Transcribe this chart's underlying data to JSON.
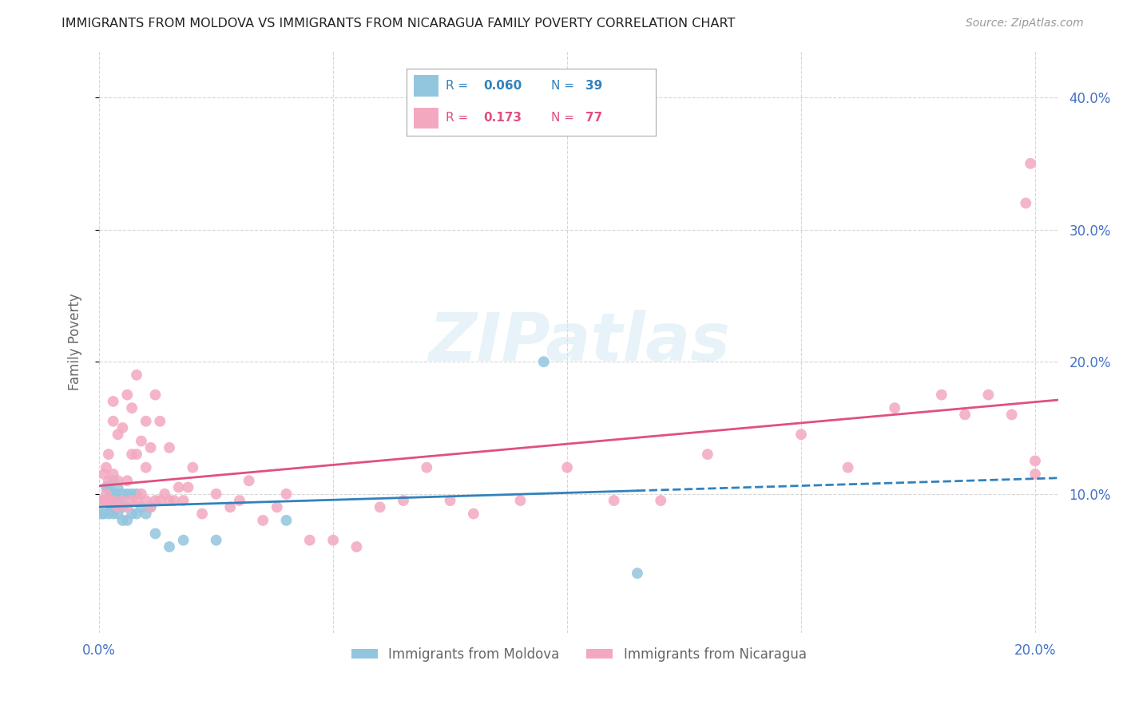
{
  "title": "IMMIGRANTS FROM MOLDOVA VS IMMIGRANTS FROM NICARAGUA FAMILY POVERTY CORRELATION CHART",
  "source": "Source: ZipAtlas.com",
  "ylabel": "Family Poverty",
  "xlim": [
    0.0,
    0.205
  ],
  "ylim": [
    -0.005,
    0.435
  ],
  "right_yticks": [
    0.1,
    0.2,
    0.3,
    0.4
  ],
  "right_ytick_labels": [
    "10.0%",
    "20.0%",
    "30.0%",
    "40.0%"
  ],
  "xtick_positions": [
    0.0,
    0.05,
    0.1,
    0.15,
    0.2
  ],
  "xtick_labels": [
    "0.0%",
    "",
    "",
    "",
    "20.0%"
  ],
  "moldova_color": "#92c5de",
  "nicaragua_color": "#f4a8c0",
  "moldova_R": 0.06,
  "moldova_N": 39,
  "nicaragua_R": 0.173,
  "nicaragua_N": 77,
  "moldova_line_color": "#3182bd",
  "nicaragua_line_color": "#e05080",
  "background_color": "#ffffff",
  "grid_color": "#cccccc",
  "axis_label_color": "#666666",
  "tick_color": "#4472C4",
  "watermark_text": "ZIPatlas",
  "watermark_color": "#d0e8f5",
  "moldova_x": [
    0.0005,
    0.001,
    0.001,
    0.0015,
    0.0015,
    0.002,
    0.002,
    0.002,
    0.0025,
    0.0025,
    0.003,
    0.003,
    0.003,
    0.003,
    0.0035,
    0.0035,
    0.004,
    0.004,
    0.004,
    0.0045,
    0.005,
    0.005,
    0.005,
    0.006,
    0.006,
    0.007,
    0.007,
    0.008,
    0.008,
    0.009,
    0.01,
    0.011,
    0.012,
    0.015,
    0.018,
    0.025,
    0.04,
    0.095,
    0.115
  ],
  "moldova_y": [
    0.085,
    0.085,
    0.095,
    0.095,
    0.105,
    0.085,
    0.095,
    0.105,
    0.09,
    0.1,
    0.085,
    0.095,
    0.1,
    0.11,
    0.09,
    0.1,
    0.085,
    0.095,
    0.105,
    0.095,
    0.08,
    0.09,
    0.1,
    0.08,
    0.1,
    0.085,
    0.1,
    0.085,
    0.1,
    0.09,
    0.085,
    0.09,
    0.07,
    0.06,
    0.065,
    0.065,
    0.08,
    0.2,
    0.04
  ],
  "nicaragua_x": [
    0.0005,
    0.001,
    0.001,
    0.0015,
    0.0015,
    0.002,
    0.002,
    0.002,
    0.003,
    0.003,
    0.003,
    0.003,
    0.004,
    0.004,
    0.004,
    0.005,
    0.005,
    0.006,
    0.006,
    0.006,
    0.007,
    0.007,
    0.007,
    0.008,
    0.008,
    0.008,
    0.009,
    0.009,
    0.01,
    0.01,
    0.01,
    0.011,
    0.011,
    0.012,
    0.012,
    0.013,
    0.013,
    0.014,
    0.015,
    0.015,
    0.016,
    0.017,
    0.018,
    0.019,
    0.02,
    0.022,
    0.025,
    0.028,
    0.03,
    0.032,
    0.035,
    0.038,
    0.04,
    0.045,
    0.05,
    0.055,
    0.06,
    0.065,
    0.07,
    0.075,
    0.08,
    0.09,
    0.1,
    0.11,
    0.12,
    0.13,
    0.15,
    0.16,
    0.17,
    0.18,
    0.185,
    0.19,
    0.195,
    0.198,
    0.199,
    0.2,
    0.2
  ],
  "nicaragua_y": [
    0.095,
    0.095,
    0.115,
    0.1,
    0.12,
    0.095,
    0.11,
    0.13,
    0.095,
    0.115,
    0.155,
    0.17,
    0.09,
    0.11,
    0.145,
    0.095,
    0.15,
    0.09,
    0.11,
    0.175,
    0.095,
    0.13,
    0.165,
    0.095,
    0.13,
    0.19,
    0.1,
    0.14,
    0.095,
    0.12,
    0.155,
    0.09,
    0.135,
    0.095,
    0.175,
    0.095,
    0.155,
    0.1,
    0.095,
    0.135,
    0.095,
    0.105,
    0.095,
    0.105,
    0.12,
    0.085,
    0.1,
    0.09,
    0.095,
    0.11,
    0.08,
    0.09,
    0.1,
    0.065,
    0.065,
    0.06,
    0.09,
    0.095,
    0.12,
    0.095,
    0.085,
    0.095,
    0.12,
    0.095,
    0.095,
    0.13,
    0.145,
    0.12,
    0.165,
    0.175,
    0.16,
    0.175,
    0.16,
    0.32,
    0.35,
    0.125,
    0.115
  ]
}
